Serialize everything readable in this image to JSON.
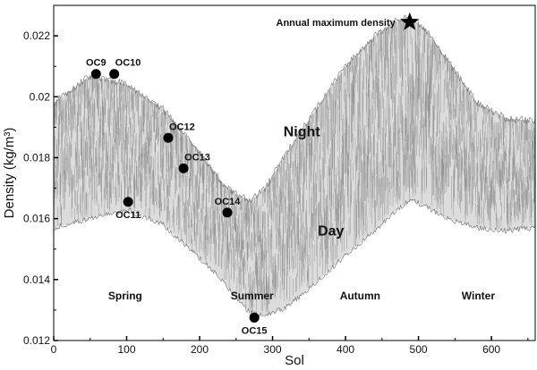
{
  "chart_data": {
    "type": "scatter",
    "title": "",
    "xlabel": "Sol",
    "ylabel": "Density (kg/m³)",
    "xlim": [
      0,
      660
    ],
    "ylim": [
      0.012,
      0.023
    ],
    "x_ticks": [
      0,
      100,
      200,
      300,
      400,
      500,
      600
    ],
    "y_ticks": [
      0.012,
      0.014,
      0.016,
      0.018,
      0.02,
      0.022
    ],
    "y_tick_labels": [
      "0.012",
      "0.014",
      "0.016",
      "0.018",
      "0.02",
      "0.022"
    ],
    "grid": false,
    "legend": "none",
    "band": {
      "name": "density",
      "color": "#8c8c8c",
      "x": [
        0,
        50,
        100,
        150,
        200,
        230,
        250,
        270,
        290,
        320,
        360,
        400,
        440,
        470,
        490,
        510,
        540,
        580,
        620,
        660
      ],
      "upper": [
        0.0198,
        0.0207,
        0.0204,
        0.0196,
        0.0182,
        0.0172,
        0.0168,
        0.0166,
        0.017,
        0.0182,
        0.0196,
        0.021,
        0.022,
        0.0225,
        0.0226,
        0.0222,
        0.0212,
        0.0198,
        0.0193,
        0.0192
      ],
      "lower": [
        0.0157,
        0.016,
        0.0163,
        0.0158,
        0.0147,
        0.014,
        0.0134,
        0.0129,
        0.0128,
        0.0131,
        0.0139,
        0.0148,
        0.0156,
        0.0163,
        0.0166,
        0.0164,
        0.016,
        0.0157,
        0.0156,
        0.0157
      ]
    },
    "markers": [
      {
        "label": "OC9",
        "x": 58,
        "y": 0.02075,
        "label_pos": "above"
      },
      {
        "label": "OC10",
        "x": 83,
        "y": 0.02075,
        "label_pos": "above-right"
      },
      {
        "label": "OC11",
        "x": 102,
        "y": 0.01655,
        "label_pos": "below"
      },
      {
        "label": "OC12",
        "x": 157,
        "y": 0.01865,
        "label_pos": "above-right"
      },
      {
        "label": "OC13",
        "x": 178,
        "y": 0.01765,
        "label_pos": "above-right"
      },
      {
        "label": "OC14",
        "x": 238,
        "y": 0.0162,
        "label_pos": "above"
      },
      {
        "label": "OC15",
        "x": 275,
        "y": 0.01275,
        "label_pos": "below"
      }
    ],
    "max_marker": {
      "label": "Annual maximum density",
      "x": 488,
      "y": 0.02245
    },
    "annotations": [
      {
        "text": "Night",
        "x": 340,
        "y": 0.0187,
        "size": 16
      },
      {
        "text": "Day",
        "x": 380,
        "y": 0.01545,
        "size": 16
      },
      {
        "text": "Spring",
        "x": 98,
        "y": 0.01335,
        "size": 12
      },
      {
        "text": "Summer",
        "x": 272,
        "y": 0.01335,
        "size": 12
      },
      {
        "text": "Autumn",
        "x": 420,
        "y": 0.01335,
        "size": 12
      },
      {
        "text": "Winter",
        "x": 582,
        "y": 0.01335,
        "size": 12
      }
    ]
  }
}
